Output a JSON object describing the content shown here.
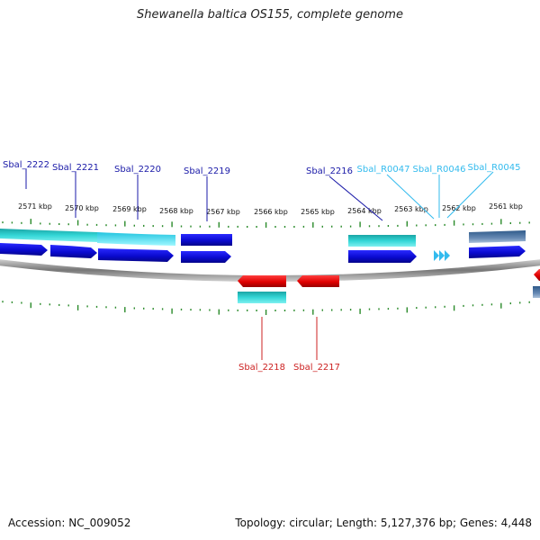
{
  "title": "Shewanella baltica OS155, complete genome",
  "footer": {
    "accession": "Accession: NC_009052",
    "topology": "Topology: circular",
    "length": "Length: 5,127,376 bp",
    "genes": "Genes: 4,448",
    "separator": "; "
  },
  "colors": {
    "cds_forward": "#1010dd",
    "rna_forward": "#33bbee",
    "cds_reverse": "#ee1111",
    "tick": "#2a8a2a",
    "backbone": "#888888",
    "label_forward_cds": "#1a1aa8",
    "label_rna": "#33bbee",
    "label_reverse": "#cc2222",
    "feature_cyan": "#33cccc",
    "feature_slate": "#5577aa"
  },
  "scale": {
    "unit": "kbp",
    "tick_labels": [
      "2571 kbp",
      "2570 kbp",
      "2569 kbp",
      "2568 kbp",
      "2567 kbp",
      "2566 kbp",
      "2565 kbp",
      "2564 kbp",
      "2563 kbp",
      "2562 kbp",
      "2561 kbp"
    ]
  },
  "genes": {
    "forward_labels": [
      {
        "id": "Sbal_2222",
        "type": "cds"
      },
      {
        "id": "Sbal_2221",
        "type": "cds"
      },
      {
        "id": "Sbal_2220",
        "type": "cds"
      },
      {
        "id": "Sbal_2219",
        "type": "cds"
      },
      {
        "id": "Sbal_2216",
        "type": "cds"
      },
      {
        "id": "Sbal_R0047",
        "type": "rna"
      },
      {
        "id": "Sbal_R0046",
        "type": "rna"
      },
      {
        "id": "Sbal_R0045",
        "type": "rna"
      }
    ],
    "reverse_labels": [
      {
        "id": "Sbal_2218",
        "type": "cds"
      },
      {
        "id": "Sbal_2217",
        "type": "cds"
      }
    ]
  }
}
